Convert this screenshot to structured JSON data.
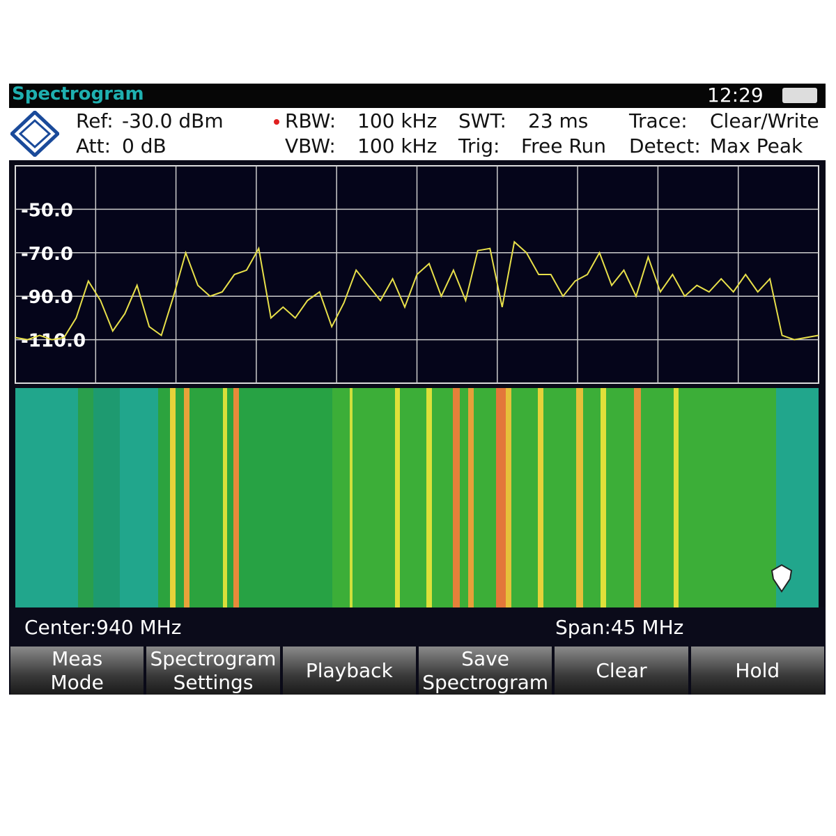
{
  "header": {
    "title": "Spectrogram",
    "time": "12:29"
  },
  "settings": {
    "ref_label": "Ref:",
    "ref_value": "-30.0 dBm",
    "att_label": "Att:",
    "att_value": "0 dB",
    "rbw_label": "RBW:",
    "rbw_value": "100 kHz",
    "vbw_label": "VBW:",
    "vbw_value": "100 kHz",
    "swt_label": "SWT:",
    "swt_value": "23 ms",
    "trig_label": "Trig:",
    "trig_value": "Free Run",
    "trace_label": "Trace:",
    "trace_value": "Clear/Write",
    "detect_label": "Detect:",
    "detect_value": "Max Peak"
  },
  "chart_data": {
    "type": "line",
    "ylim": [
      -130,
      -30
    ],
    "yticks": [
      {
        "value": -50,
        "label": "-50.0"
      },
      {
        "value": -70,
        "label": "-70.0"
      },
      {
        "value": -90,
        "label": "-90.0"
      },
      {
        "value": -110,
        "label": "-110.0"
      }
    ],
    "grid": true,
    "series": [
      {
        "color": "#e8e04a",
        "values": [
          -109,
          -110,
          -108,
          -110,
          -109,
          -100,
          -83,
          -92,
          -106,
          -98,
          -85,
          -104,
          -108,
          -90,
          -70,
          -85,
          -90,
          -88,
          -80,
          -78,
          -68,
          -100,
          -95,
          -100,
          -92,
          -88,
          -104,
          -93,
          -78,
          -85,
          -92,
          -82,
          -95,
          -80,
          -75,
          -90,
          -78,
          -92,
          -69,
          -68,
          -95,
          -65,
          -70,
          -80,
          -80,
          -90,
          -83,
          -80,
          -70,
          -85,
          -78,
          -90,
          -72,
          -88,
          -80,
          -90,
          -85,
          -88,
          -82,
          -88,
          -80,
          -88,
          -82,
          -108,
          -110,
          -109,
          -108
        ]
      }
    ]
  },
  "footer": {
    "center": "Center:940 MHz",
    "span": "Span:45 MHz"
  },
  "softkeys": [
    {
      "lines": [
        "Meas",
        "Mode"
      ]
    },
    {
      "lines": [
        "Spectrogram",
        "Settings"
      ]
    },
    {
      "lines": [
        "Playback"
      ]
    },
    {
      "lines": [
        "Save",
        "Spectrogram"
      ]
    },
    {
      "lines": [
        "Clear"
      ]
    },
    {
      "lines": [
        "Hold"
      ]
    }
  ]
}
